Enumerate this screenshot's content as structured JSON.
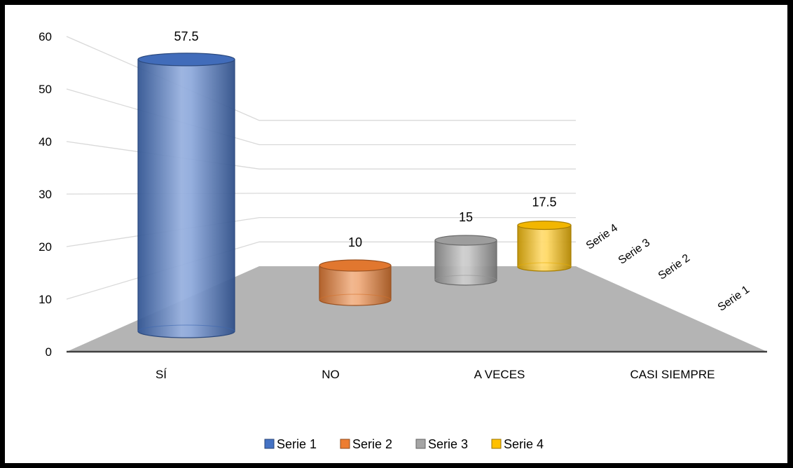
{
  "chart_data": {
    "type": "bar",
    "style": "3d-cylinder",
    "categories": [
      "SÍ",
      "NO",
      "A VECES",
      "CASI SIEMPRE"
    ],
    "series": [
      {
        "name": "Serie 1",
        "color": "#4472C4",
        "category": "SÍ",
        "value": 57.5
      },
      {
        "name": "Serie 2",
        "color": "#ED7D31",
        "category": "NO",
        "value": 10
      },
      {
        "name": "Serie 3",
        "color": "#A5A5A5",
        "category": "A VECES",
        "value": 15
      },
      {
        "name": "Serie 4",
        "color": "#FFC000",
        "category": "CASI SIEMPRE",
        "value": 17.5
      }
    ],
    "y_ticks": [
      "0",
      "10",
      "20",
      "30",
      "40",
      "50",
      "60"
    ],
    "ylim": [
      0,
      60
    ],
    "grid": true,
    "floor_color": "#B4B4B4",
    "legend_position": "bottom"
  }
}
